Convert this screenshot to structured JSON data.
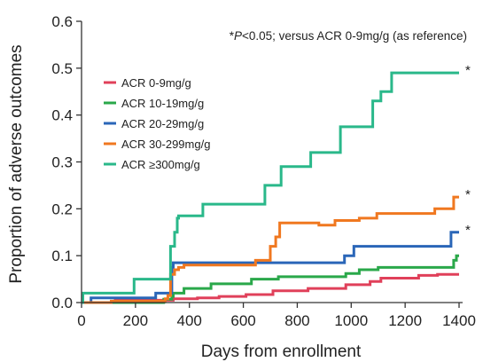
{
  "chart_data": {
    "type": "line",
    "step": true,
    "xlabel": "Days from enrollment",
    "ylabel": "Proportion of adverse outcomes",
    "xlim": [
      0,
      1400
    ],
    "ylim": [
      0,
      0.6
    ],
    "xticks": [
      "0",
      "200",
      "400",
      "600",
      "800",
      "1000",
      "1200",
      "1400"
    ],
    "yticks": [
      "0.0",
      "0.1",
      "0.2",
      "0.3",
      "0.4",
      "0.5",
      "0.6"
    ],
    "annotation": {
      "prefix": "*",
      "italic": "P",
      "suffix": "<0.05; versus ACR 0-9mg/g (as reference)"
    },
    "legend_position": "upper-left",
    "series": [
      {
        "name": "ACR 0-9mg/g",
        "color": "#e0405a",
        "star": "",
        "points": [
          [
            0,
            0
          ],
          [
            120,
            0
          ],
          [
            125,
            0.005
          ],
          [
            330,
            0.005
          ],
          [
            340,
            0.008
          ],
          [
            420,
            0.008
          ],
          [
            430,
            0.01
          ],
          [
            500,
            0.01
          ],
          [
            510,
            0.013
          ],
          [
            600,
            0.013
          ],
          [
            610,
            0.017
          ],
          [
            700,
            0.017
          ],
          [
            710,
            0.025
          ],
          [
            830,
            0.025
          ],
          [
            840,
            0.03
          ],
          [
            970,
            0.03
          ],
          [
            980,
            0.038
          ],
          [
            1060,
            0.038
          ],
          [
            1070,
            0.045
          ],
          [
            1100,
            0.045
          ],
          [
            1110,
            0.052
          ],
          [
            1240,
            0.052
          ],
          [
            1250,
            0.058
          ],
          [
            1310,
            0.058
          ],
          [
            1320,
            0.06
          ],
          [
            1400,
            0.06
          ]
        ]
      },
      {
        "name": "ACR 10-19mg/g",
        "color": "#2aa84a",
        "star": "",
        "points": [
          [
            0,
            0
          ],
          [
            300,
            0
          ],
          [
            305,
            0.007
          ],
          [
            330,
            0.007
          ],
          [
            335,
            0.013
          ],
          [
            340,
            0.02
          ],
          [
            370,
            0.02
          ],
          [
            380,
            0.03
          ],
          [
            470,
            0.03
          ],
          [
            480,
            0.04
          ],
          [
            620,
            0.04
          ],
          [
            630,
            0.05
          ],
          [
            720,
            0.05
          ],
          [
            730,
            0.055
          ],
          [
            970,
            0.055
          ],
          [
            980,
            0.062
          ],
          [
            1020,
            0.062
          ],
          [
            1030,
            0.07
          ],
          [
            1090,
            0.07
          ],
          [
            1100,
            0.075
          ],
          [
            1370,
            0.075
          ],
          [
            1380,
            0.09
          ],
          [
            1390,
            0.1
          ],
          [
            1400,
            0.1
          ]
        ]
      },
      {
        "name": "ACR 20-29mg/g",
        "color": "#2a66b8",
        "star": "*",
        "points": [
          [
            0,
            0
          ],
          [
            30,
            0
          ],
          [
            35,
            0.01
          ],
          [
            270,
            0.01
          ],
          [
            275,
            0.02
          ],
          [
            330,
            0.02
          ],
          [
            335,
            0.075
          ],
          [
            340,
            0.085
          ],
          [
            965,
            0.085
          ],
          [
            975,
            0.1
          ],
          [
            1000,
            0.1
          ],
          [
            1010,
            0.12
          ],
          [
            1360,
            0.12
          ],
          [
            1370,
            0.15
          ],
          [
            1400,
            0.15
          ]
        ]
      },
      {
        "name": "ACR 30-299mg/g",
        "color": "#f07820",
        "star": "*",
        "points": [
          [
            0,
            0
          ],
          [
            100,
            0
          ],
          [
            110,
            0.003
          ],
          [
            300,
            0.003
          ],
          [
            310,
            0.008
          ],
          [
            320,
            0.015
          ],
          [
            330,
            0.06
          ],
          [
            345,
            0.07
          ],
          [
            360,
            0.075
          ],
          [
            380,
            0.08
          ],
          [
            630,
            0.08
          ],
          [
            645,
            0.09
          ],
          [
            690,
            0.09
          ],
          [
            700,
            0.12
          ],
          [
            720,
            0.14
          ],
          [
            735,
            0.17
          ],
          [
            870,
            0.17
          ],
          [
            880,
            0.165
          ],
          [
            920,
            0.165
          ],
          [
            940,
            0.175
          ],
          [
            1010,
            0.175
          ],
          [
            1030,
            0.18
          ],
          [
            1080,
            0.18
          ],
          [
            1095,
            0.19
          ],
          [
            1300,
            0.19
          ],
          [
            1310,
            0.2
          ],
          [
            1370,
            0.2
          ],
          [
            1380,
            0.225
          ],
          [
            1400,
            0.225
          ]
        ]
      },
      {
        "name": "ACR ≥300mg/g",
        "color": "#2ab88a",
        "star": "*",
        "points": [
          [
            0,
            0
          ],
          [
            5,
            0.02
          ],
          [
            190,
            0.02
          ],
          [
            195,
            0.05
          ],
          [
            320,
            0.05
          ],
          [
            330,
            0.12
          ],
          [
            345,
            0.15
          ],
          [
            355,
            0.18
          ],
          [
            360,
            0.185
          ],
          [
            440,
            0.185
          ],
          [
            450,
            0.21
          ],
          [
            670,
            0.21
          ],
          [
            680,
            0.25
          ],
          [
            730,
            0.25
          ],
          [
            740,
            0.29
          ],
          [
            840,
            0.29
          ],
          [
            850,
            0.32
          ],
          [
            950,
            0.32
          ],
          [
            960,
            0.375
          ],
          [
            1070,
            0.375
          ],
          [
            1080,
            0.43
          ],
          [
            1100,
            0.43
          ],
          [
            1110,
            0.45
          ],
          [
            1140,
            0.45
          ],
          [
            1150,
            0.49
          ],
          [
            1400,
            0.49
          ]
        ]
      }
    ]
  }
}
